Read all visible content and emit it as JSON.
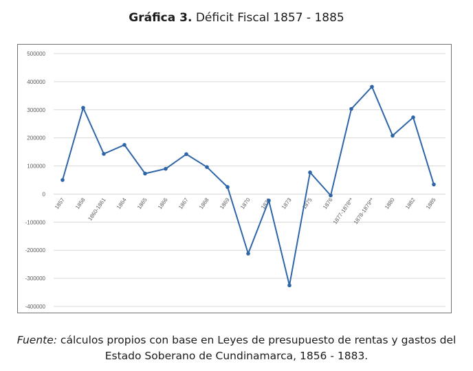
{
  "header": {
    "title_bold": "Gráfica 3.",
    "title_rest": " Déficit Fiscal 1857 - 1885"
  },
  "footer": {
    "source_label": "Fuente:",
    "source_line1": " cálculos propios con base en Leyes de presupuesto de rentas y gastos del",
    "source_line2": "Estado Soberano de Cundinamarca, 1856 - 1883."
  },
  "chart_data": {
    "type": "line",
    "title": "",
    "xlabel": "",
    "ylabel": "",
    "ylim": [
      -400000,
      500000
    ],
    "yticks": [
      500000,
      400000,
      300000,
      200000,
      100000,
      0,
      -100000,
      -200000,
      -300000,
      -400000
    ],
    "grid": true,
    "legend": "none",
    "line_color": "#2e64a8",
    "categories": [
      "1857",
      "1858",
      "1860-1861",
      "1864",
      "1865",
      "1866",
      "1867",
      "1868",
      "1869",
      "1870",
      "1871",
      "1873",
      "1875",
      "1876",
      "1877-1878**",
      "1878-1879**",
      "1880",
      "1882",
      "1885"
    ],
    "series": [
      {
        "values": [
          50000,
          307000,
          143000,
          175000,
          73000,
          90000,
          142000,
          96000,
          25000,
          -212000,
          -23000,
          -325000,
          77000,
          -5000,
          303000,
          382000,
          208000,
          273000,
          34000
        ]
      }
    ]
  }
}
